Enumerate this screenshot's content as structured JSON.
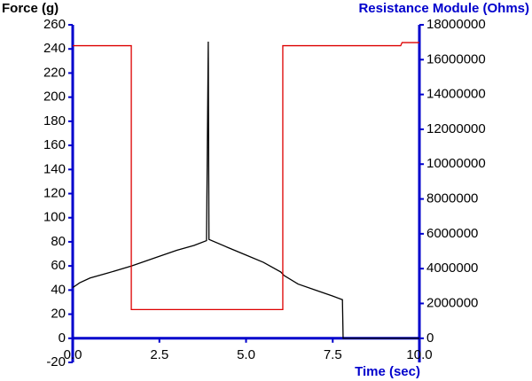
{
  "chart_data": {
    "type": "line",
    "y_label": "Force (g)",
    "y2_label": "Resistance Module (Ohms)",
    "x_label": "Time (sec)",
    "xlim": [
      0,
      10
    ],
    "xticks": [
      {
        "value": 0,
        "label": "0.0"
      },
      2.5,
      {
        "value": 5,
        "label": "5.0"
      },
      7.5,
      {
        "value": 10,
        "label": "10.0"
      }
    ],
    "ylim": [
      -20,
      260
    ],
    "yticks": [
      -20,
      0,
      20,
      40,
      60,
      80,
      100,
      120,
      140,
      160,
      180,
      200,
      220,
      240,
      260
    ],
    "y2lim": [
      -1384615,
      18000000
    ],
    "y2ticks": [
      0,
      2000000,
      4000000,
      6000000,
      8000000,
      10000000,
      12000000,
      14000000,
      16000000,
      18000000
    ],
    "axis_color": "#0000cc",
    "series": [
      {
        "color": "#000000",
        "x": [
          0,
          0.2,
          0.5,
          1.0,
          1.7,
          2.5,
          3.0,
          3.5,
          3.86,
          3.91,
          3.93,
          4.5,
          5.0,
          5.5,
          6.0,
          6.1,
          6.5,
          7.0,
          7.5,
          7.78,
          7.8,
          10
        ],
        "values": [
          42,
          46,
          50,
          54,
          60,
          68,
          73,
          77,
          81,
          246,
          82,
          75,
          69,
          63,
          55,
          52,
          45,
          40,
          35,
          32,
          0,
          0
        ]
      },
      {
        "color": "#dd0000",
        "axis": "y2",
        "x": [
          0,
          1.69,
          1.69,
          6.06,
          6.06,
          9.46,
          9.5,
          10
        ],
        "values": [
          16800000,
          16800000,
          1650000,
          1650000,
          16800000,
          16800000,
          16980000,
          16980000
        ]
      }
    ]
  }
}
